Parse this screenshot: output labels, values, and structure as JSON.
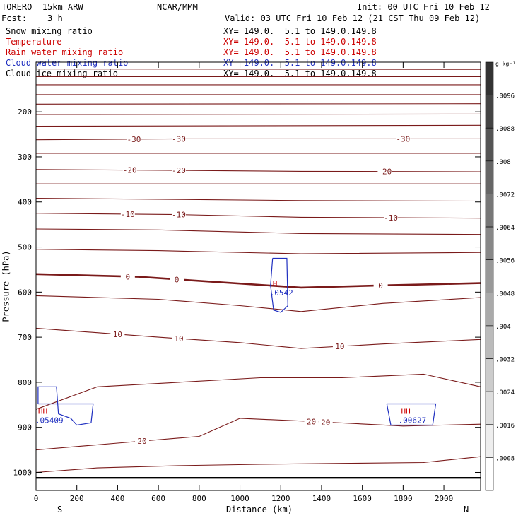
{
  "header": {
    "model": "TORERO  15km ARW",
    "center": "NCAR/MMM",
    "init": "Init: 00 UTC Fri 10 Feb 12",
    "fcst": "Fcst:    3 h",
    "valid": "Valid: 03 UTC Fri 10 Feb 12 (21 CST Thu 09 Feb 12)"
  },
  "fields": [
    {
      "name": "Snow mixing ratio",
      "loc": "XY= 149.0.  5.1 to 149.0.149.8",
      "color": "#000000"
    },
    {
      "name": "Temperature",
      "loc": "XY= 149.0.  5.1 to 149.0.149.8",
      "color": "#cc0000"
    },
    {
      "name": "Rain water mixing ratio",
      "loc": "XY= 149.0.  5.1 to 149.0.149.8",
      "color": "#cc0000"
    },
    {
      "name": "Cloud water mixing ratio",
      "loc": "XY= 149.0.  5.1 to 149.0.149.8",
      "color": "#1f2fc0"
    },
    {
      "name": "Cloud ice mixing ratio",
      "loc": "XY= 149.0.  5.1 to 149.0.149.8",
      "color": "#000000"
    }
  ],
  "chart_data": {
    "type": "line",
    "xlabel": "Distance (km)",
    "ylabel": "Pressure (hPa)",
    "xlim": [
      0,
      2180
    ],
    "ylim": [
      1040,
      90
    ],
    "x_ticks": [
      0,
      200,
      400,
      600,
      800,
      1000,
      1200,
      1400,
      1600,
      1800,
      2000
    ],
    "y_ticks": [
      200,
      300,
      400,
      500,
      600,
      700,
      800,
      900,
      1000
    ],
    "x_end_labels": {
      "left": "S",
      "right": "N"
    },
    "isotherm_color": "#7a1a1a",
    "cloud_color": "#1f2fc0",
    "ground_pressure": 1012,
    "isotherms": [
      {
        "x": [
          0,
          2180
        ],
        "p": [
          105,
          106
        ]
      },
      {
        "x": [
          0,
          2180
        ],
        "p": [
          122,
          122
        ]
      },
      {
        "x": [
          0,
          2180
        ],
        "p": [
          140,
          140
        ]
      },
      {
        "x": [
          0,
          2180
        ],
        "p": [
          162,
          162
        ]
      },
      {
        "x": [
          0,
          2180
        ],
        "p": [
          183,
          182
        ]
      },
      {
        "x": [
          0,
          2180
        ],
        "p": [
          206,
          205
        ]
      },
      {
        "x": [
          0,
          2180
        ],
        "p": [
          232,
          230
        ]
      },
      {
        "x": [
          0,
          700,
          1300,
          2180
        ],
        "p": [
          262,
          260,
          260,
          260
        ],
        "label": "-30",
        "label_x": [
          480,
          700,
          1800
        ]
      },
      {
        "x": [
          0,
          2180
        ],
        "p": [
          292,
          292
        ]
      },
      {
        "x": [
          0,
          700,
          1300,
          2180
        ],
        "p": [
          328,
          330,
          332,
          333
        ],
        "label": "-20",
        "label_x": [
          460,
          700,
          1710
        ]
      },
      {
        "x": [
          0,
          2180
        ],
        "p": [
          360,
          360
        ]
      },
      {
        "x": [
          0,
          600,
          1300,
          2180
        ],
        "p": [
          392,
          394,
          397,
          398
        ]
      },
      {
        "x": [
          0,
          700,
          1300,
          2180
        ],
        "p": [
          425,
          428,
          434,
          436
        ],
        "label": "-10",
        "label_x": [
          450,
          700,
          1740
        ]
      },
      {
        "x": [
          0,
          600,
          1300,
          2180
        ],
        "p": [
          460,
          462,
          470,
          472
        ]
      },
      {
        "x": [
          0,
          600,
          1300,
          2180
        ],
        "p": [
          505,
          508,
          515,
          512
        ]
      },
      {
        "x": [
          0,
          500,
          900,
          1300,
          1700,
          2180
        ],
        "p": [
          560,
          566,
          578,
          590,
          585,
          580
        ],
        "label": "0",
        "label_x": [
          450,
          690,
          1690
        ],
        "thick": true
      },
      {
        "x": [
          0,
          600,
          1000,
          1300,
          1700,
          2180
        ],
        "p": [
          608,
          616,
          630,
          643,
          625,
          612
        ]
      },
      {
        "x": [
          0,
          600,
          1000,
          1300,
          1700,
          2180
        ],
        "p": [
          680,
          700,
          712,
          725,
          715,
          705
        ],
        "label": "10",
        "label_x": [
          400,
          700,
          1490
        ]
      },
      {
        "x": [
          0,
          300,
          700,
          1100,
          1500,
          1900,
          2180
        ],
        "p": [
          860,
          810,
          800,
          790,
          790,
          782,
          810
        ]
      },
      {
        "x": [
          0,
          400,
          800,
          1000,
          1400,
          1800,
          2180
        ],
        "p": [
          950,
          935,
          920,
          880,
          888,
          897,
          893
        ],
        "label": "20",
        "label_x": [
          520,
          1350,
          1420
        ]
      },
      {
        "x": [
          0,
          300,
          700,
          1100,
          1500,
          1900,
          2180
        ],
        "p": [
          1000,
          990,
          985,
          982,
          980,
          978,
          965
        ]
      }
    ],
    "clouds": [
      {
        "label": "H",
        "value": ".0542",
        "at": [
          1160,
          587
        ],
        "path_x": [
          1160,
          1230,
          1235,
          1200,
          1165,
          1150,
          1160
        ],
        "path_p": [
          525,
          525,
          630,
          645,
          640,
          585,
          525
        ]
      },
      {
        "label": "HH",
        "value": ".05409",
        "at": [
          10,
          870
        ],
        "path_x": [
          10,
          280,
          270,
          200,
          170,
          110,
          100,
          10,
          10
        ],
        "path_p": [
          848,
          848,
          890,
          895,
          880,
          870,
          810,
          810,
          848
        ]
      },
      {
        "label": "HH",
        "value": ".00627",
        "at": [
          1790,
          870
        ],
        "path_x": [
          1720,
          1960,
          1945,
          1740,
          1720
        ],
        "path_p": [
          848,
          848,
          895,
          895,
          848
        ]
      }
    ],
    "colorbar": {
      "unit": "g kg⁻¹",
      "ticks": [
        ".0096",
        ".0088",
        ".008",
        ".0072",
        ".0064",
        ".0056",
        ".0048",
        ".004",
        ".0032",
        ".0024",
        ".0016",
        ".0008"
      ],
      "shades": [
        "#333333",
        "#444444",
        "#555555",
        "#666666",
        "#777777",
        "#888888",
        "#999999",
        "#aaaaaa",
        "#bbbbbb",
        "#cccccc",
        "#dddddd",
        "#eeeeee",
        "#ffffff"
      ]
    }
  }
}
